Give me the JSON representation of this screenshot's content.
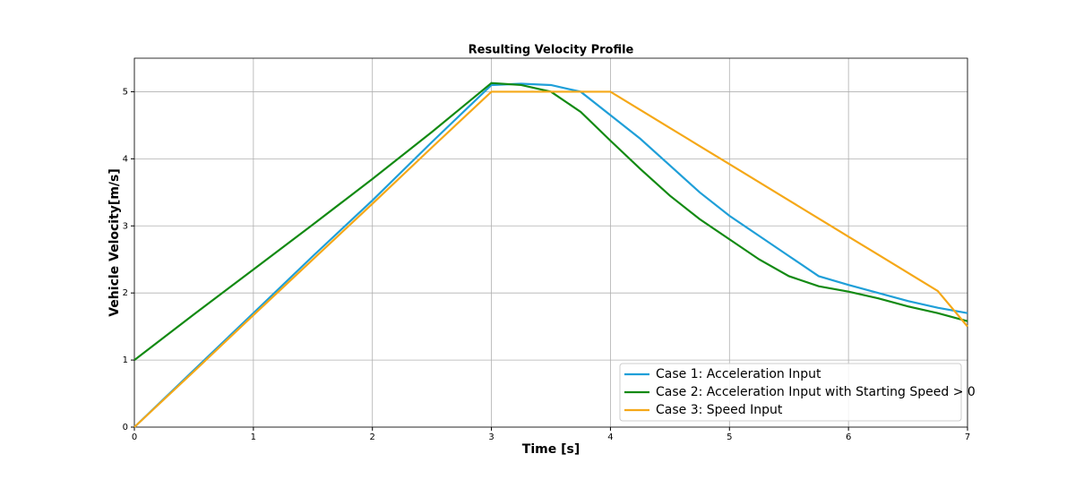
{
  "chart_data": {
    "type": "line",
    "title": "Resulting Velocity Profile",
    "x_label": "Time [s]",
    "y_label": "Vehicle Velocity[m/s]",
    "x": [
      0,
      0.5,
      1,
      1.5,
      2,
      2.5,
      3,
      3.25,
      3.5,
      3.75,
      4,
      4.25,
      4.5,
      4.75,
      5,
      5.25,
      5.5,
      5.75,
      6,
      6.25,
      6.5,
      6.75,
      7
    ],
    "series": [
      {
        "name": "Case 1: Acceleration Input",
        "color": "#1f9fd8",
        "values": [
          0,
          0.85,
          1.7,
          2.55,
          3.38,
          4.25,
          5.1,
          5.12,
          5.1,
          5.0,
          4.65,
          4.3,
          3.9,
          3.5,
          3.15,
          2.85,
          2.55,
          2.25,
          2.12,
          2.0,
          1.88,
          1.78,
          1.7
        ]
      },
      {
        "name": "Case 2: Acceleration Input with Starting Speed > 0",
        "color": "#138a13",
        "values": [
          1,
          1.68,
          2.35,
          3.02,
          3.7,
          4.4,
          5.13,
          5.1,
          5.0,
          4.7,
          4.27,
          3.85,
          3.45,
          3.1,
          2.8,
          2.5,
          2.25,
          2.1,
          2.02,
          1.92,
          1.8,
          1.7,
          1.58
        ]
      },
      {
        "name": "Case 3: Speed Input",
        "color": "#f5a818",
        "values": [
          0,
          0.83,
          1.67,
          2.5,
          3.33,
          4.17,
          5,
          5,
          5,
          5,
          5,
          4.73,
          4.46,
          4.19,
          3.92,
          3.65,
          3.38,
          3.11,
          2.84,
          2.57,
          2.3,
          2.03,
          1.5
        ]
      }
    ],
    "xlim": [
      0,
      7
    ],
    "ylim": [
      0,
      5.5
    ],
    "xticks": [
      0,
      1,
      2,
      3,
      4,
      5,
      6,
      7
    ],
    "yticks": [
      0,
      1,
      2,
      3,
      4,
      5
    ],
    "grid": true,
    "legend": "lower right"
  }
}
